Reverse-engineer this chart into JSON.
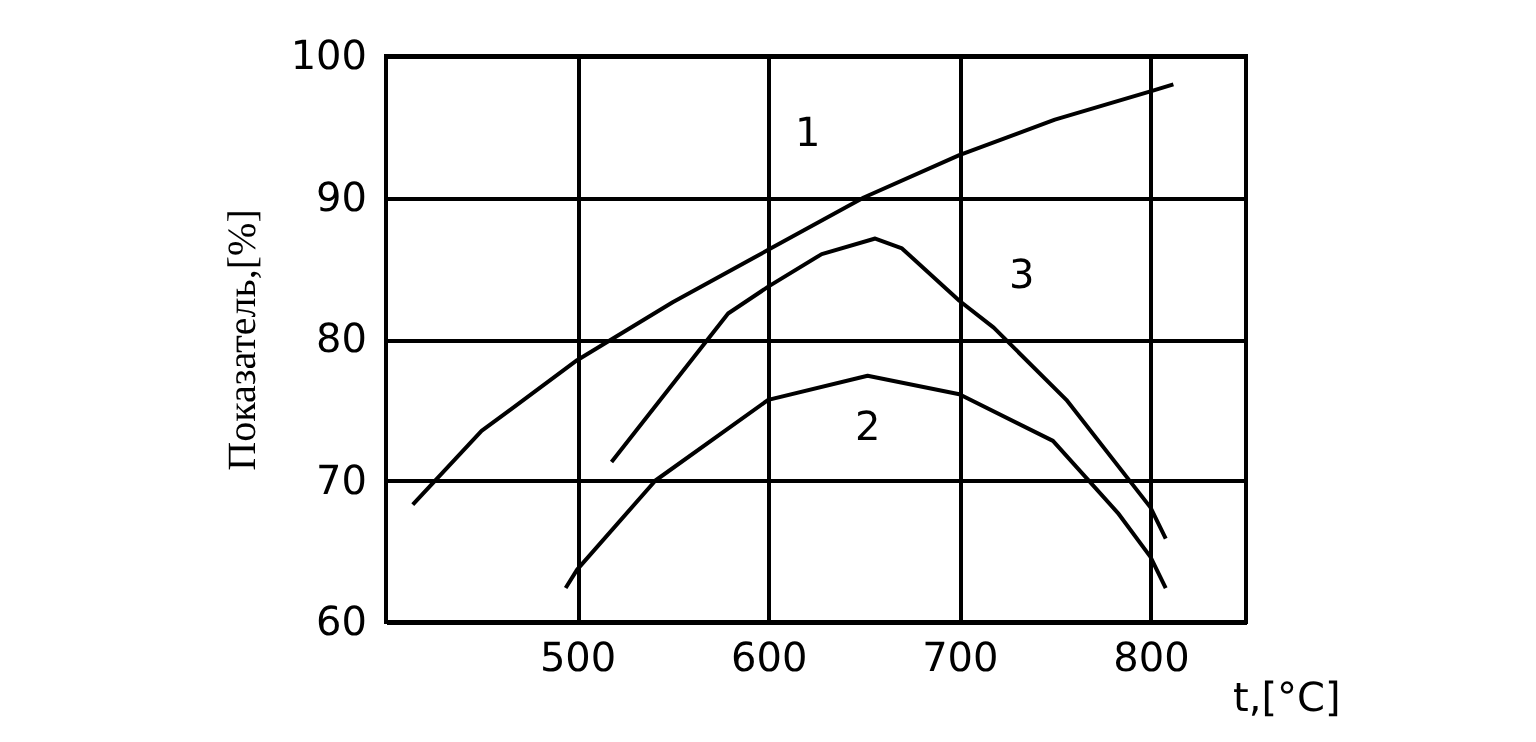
{
  "chart_data": {
    "type": "line",
    "xlabel": "t,[°C]",
    "ylabel": "Показатель,[%]",
    "xlim": [
      400,
      850
    ],
    "ylim": [
      60,
      100
    ],
    "xticks": [
      500,
      600,
      700,
      800
    ],
    "yticks": [
      60,
      70,
      80,
      90,
      100
    ],
    "grid": true,
    "marker": "none",
    "line_style": "solid",
    "series": [
      {
        "name": "1",
        "color": "#000000",
        "x": [
          414,
          450,
          500,
          550,
          600,
          650,
          700,
          750,
          800,
          812
        ],
        "values": [
          68.3,
          73.5,
          78.5,
          82.6,
          86.3,
          90,
          93,
          95.5,
          97.5,
          98
        ]
      },
      {
        "name": "2",
        "color": "#000000",
        "x": [
          494,
          500,
          541,
          600,
          652,
          700,
          749,
          783,
          800,
          808
        ],
        "values": [
          62.4,
          63.7,
          70,
          75.7,
          77.4,
          76.1,
          72.8,
          67.7,
          64.6,
          62.4
        ]
      },
      {
        "name": "3",
        "color": "#000000",
        "x": [
          518,
          579,
          600,
          628,
          656,
          670,
          700,
          718,
          756,
          800,
          808
        ],
        "values": [
          71.3,
          81.8,
          83.7,
          86,
          87.1,
          86.4,
          82.7,
          80.8,
          75.7,
          68.1,
          65.9
        ]
      }
    ]
  }
}
